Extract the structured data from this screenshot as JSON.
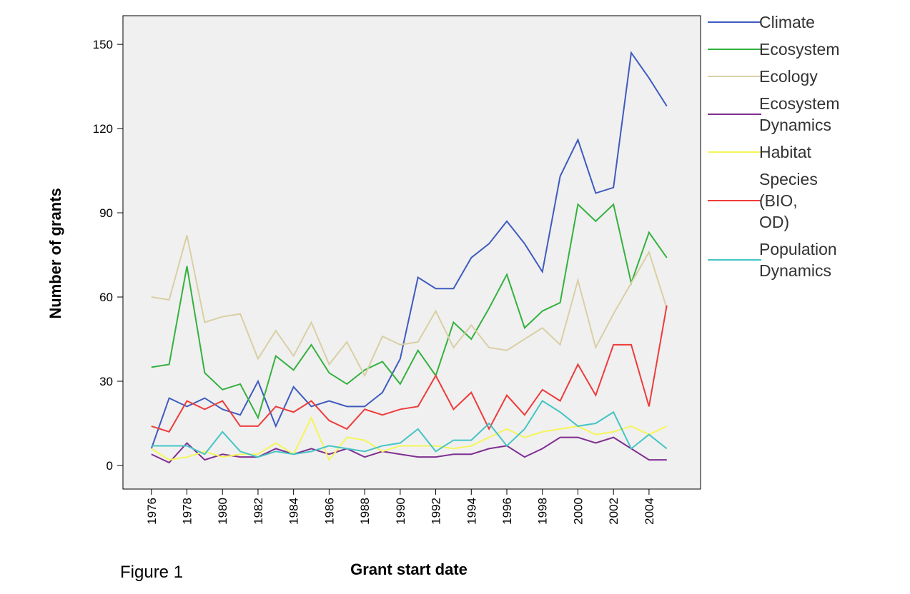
{
  "chart_data": {
    "type": "line",
    "x_label": "Grant start date",
    "y_label": "Number of grants",
    "caption": "Figure 1",
    "legend": "right",
    "x": [
      1976,
      1977,
      1978,
      1979,
      1980,
      1981,
      1982,
      1983,
      1984,
      1985,
      1986,
      1987,
      1988,
      1989,
      1990,
      1991,
      1992,
      1993,
      1994,
      1995,
      1996,
      1997,
      1998,
      1999,
      2000,
      2001,
      2002,
      2003,
      2004,
      2005
    ],
    "xlim": [
      1974.4,
      2006.9
    ],
    "xticks": [
      1976,
      1978,
      1980,
      1982,
      1984,
      1986,
      1988,
      1990,
      1992,
      1994,
      1996,
      1998,
      2000,
      2002,
      2004
    ],
    "ylim": [
      -8.4,
      160.2
    ],
    "yticks": [
      0,
      30,
      60,
      90,
      120,
      150
    ],
    "series": [
      {
        "name": "Climate",
        "color": "#3e5bbf",
        "values": [
          6,
          24,
          21,
          24,
          20,
          18,
          30,
          14,
          28,
          21,
          23,
          21,
          21,
          26,
          38,
          67,
          63,
          63,
          74,
          79,
          87,
          79,
          69,
          103,
          116,
          97,
          99,
          147,
          138,
          128
        ]
      },
      {
        "name": "Ecosystem",
        "color": "#34b13e",
        "values": [
          35,
          36,
          71,
          33,
          27,
          29,
          17,
          39,
          34,
          43,
          33,
          29,
          34,
          37,
          29,
          41,
          32,
          51,
          45,
          56,
          68,
          49,
          55,
          58,
          93,
          87,
          93,
          65,
          83,
          74
        ]
      },
      {
        "name": "Ecology",
        "color": "#d9cfa4",
        "values": [
          60,
          59,
          82,
          51,
          53,
          54,
          38,
          48,
          39,
          51,
          36,
          44,
          32,
          46,
          43,
          44,
          55,
          42,
          50,
          42,
          41,
          45,
          49,
          43,
          66,
          42,
          54,
          65,
          76,
          56
        ]
      },
      {
        "name": "Ecosystem Dynamics",
        "color": "#7f2f91",
        "values": [
          4,
          1,
          8,
          2,
          4,
          3,
          3,
          6,
          4,
          6,
          4,
          6,
          3,
          5,
          4,
          3,
          3,
          4,
          4,
          6,
          7,
          3,
          6,
          10,
          10,
          8,
          10,
          6,
          2,
          2
        ]
      },
      {
        "name": "Habitat",
        "color": "#f5f55a",
        "values": [
          6,
          2,
          3,
          5,
          3,
          4,
          4,
          8,
          4,
          17,
          2,
          10,
          9,
          5,
          7,
          7,
          7,
          6,
          7,
          10,
          13,
          10,
          12,
          13,
          14,
          11,
          12,
          14,
          11,
          14
        ]
      },
      {
        "name": "Species (BIO, OD)",
        "color": "#ee3b3b",
        "values": [
          14,
          12,
          23,
          20,
          23,
          14,
          14,
          21,
          19,
          23,
          16,
          13,
          20,
          18,
          20,
          21,
          32,
          20,
          26,
          13,
          25,
          18,
          27,
          23,
          36,
          25,
          43,
          43,
          21,
          57
        ]
      },
      {
        "name": "Population Dynamics",
        "color": "#45c4c4",
        "values": [
          7,
          7,
          7,
          4,
          12,
          5,
          3,
          5,
          4,
          5,
          7,
          6,
          5,
          7,
          8,
          13,
          5,
          9,
          9,
          15,
          7,
          13,
          23,
          19,
          14,
          15,
          19,
          6,
          11,
          6
        ]
      }
    ]
  }
}
